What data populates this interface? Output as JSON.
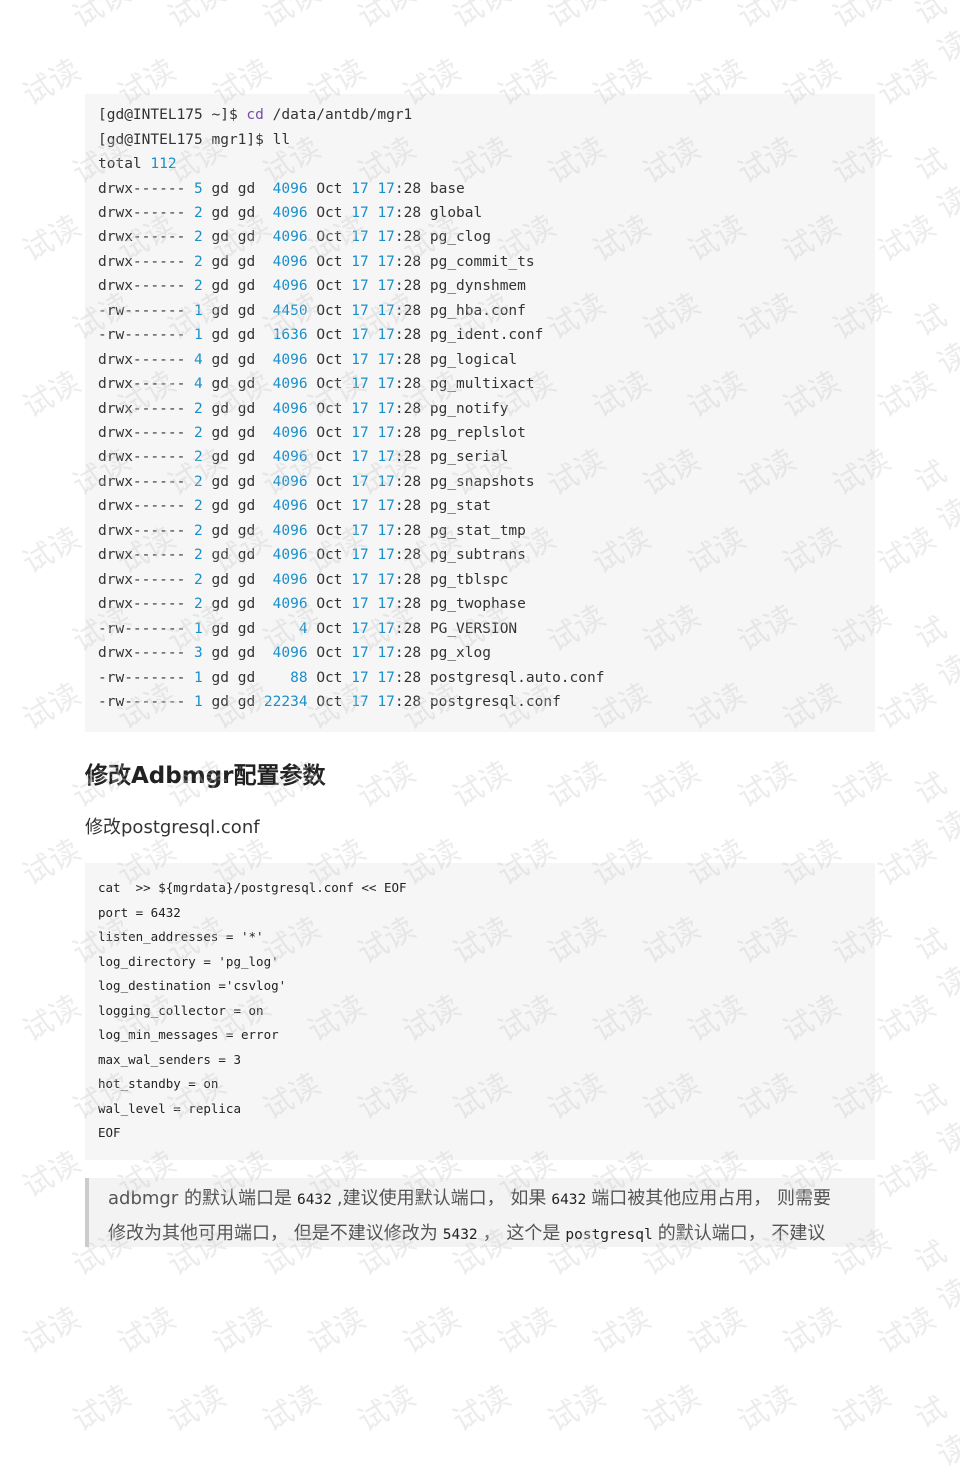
{
  "watermark": "试读",
  "terminal": {
    "prompt1": "[gd@INTEL175 ~]$ ",
    "cmd1": "cd",
    "arg1": " /data/antdb/mgr1",
    "prompt2": "[gd@INTEL175 mgr1]$ ll",
    "total_label": "total ",
    "total_value": "112",
    "rows": [
      [
        "drwx------",
        "5",
        "gd",
        "gd",
        " 4096",
        "Oct",
        "17",
        "17",
        ":28",
        "base"
      ],
      [
        "drwx------",
        "2",
        "gd",
        "gd",
        " 4096",
        "Oct",
        "17",
        "17",
        ":28",
        "global"
      ],
      [
        "drwx------",
        "2",
        "gd",
        "gd",
        " 4096",
        "Oct",
        "17",
        "17",
        ":28",
        "pg_clog"
      ],
      [
        "drwx------",
        "2",
        "gd",
        "gd",
        " 4096",
        "Oct",
        "17",
        "17",
        ":28",
        "pg_commit_ts"
      ],
      [
        "drwx------",
        "2",
        "gd",
        "gd",
        " 4096",
        "Oct",
        "17",
        "17",
        ":28",
        "pg_dynshmem"
      ],
      [
        "-rw-------",
        "1",
        "gd",
        "gd",
        " 4450",
        "Oct",
        "17",
        "17",
        ":28",
        "pg_hba.conf"
      ],
      [
        "-rw-------",
        "1",
        "gd",
        "gd",
        " 1636",
        "Oct",
        "17",
        "17",
        ":28",
        "pg_ident.conf"
      ],
      [
        "drwx------",
        "4",
        "gd",
        "gd",
        " 4096",
        "Oct",
        "17",
        "17",
        ":28",
        "pg_logical"
      ],
      [
        "drwx------",
        "4",
        "gd",
        "gd",
        " 4096",
        "Oct",
        "17",
        "17",
        ":28",
        "pg_multixact"
      ],
      [
        "drwx------",
        "2",
        "gd",
        "gd",
        " 4096",
        "Oct",
        "17",
        "17",
        ":28",
        "pg_notify"
      ],
      [
        "drwx------",
        "2",
        "gd",
        "gd",
        " 4096",
        "Oct",
        "17",
        "17",
        ":28",
        "pg_replslot"
      ],
      [
        "drwx------",
        "2",
        "gd",
        "gd",
        " 4096",
        "Oct",
        "17",
        "17",
        ":28",
        "pg_serial"
      ],
      [
        "drwx------",
        "2",
        "gd",
        "gd",
        " 4096",
        "Oct",
        "17",
        "17",
        ":28",
        "pg_snapshots"
      ],
      [
        "drwx------",
        "2",
        "gd",
        "gd",
        " 4096",
        "Oct",
        "17",
        "17",
        ":28",
        "pg_stat"
      ],
      [
        "drwx------",
        "2",
        "gd",
        "gd",
        " 4096",
        "Oct",
        "17",
        "17",
        ":28",
        "pg_stat_tmp"
      ],
      [
        "drwx------",
        "2",
        "gd",
        "gd",
        " 4096",
        "Oct",
        "17",
        "17",
        ":28",
        "pg_subtrans"
      ],
      [
        "drwx------",
        "2",
        "gd",
        "gd",
        " 4096",
        "Oct",
        "17",
        "17",
        ":28",
        "pg_tblspc"
      ],
      [
        "drwx------",
        "2",
        "gd",
        "gd",
        " 4096",
        "Oct",
        "17",
        "17",
        ":28",
        "pg_twophase"
      ],
      [
        "-rw-------",
        "1",
        "gd",
        "gd",
        "    4",
        "Oct",
        "17",
        "17",
        ":28",
        "PG_VERSION"
      ],
      [
        "drwx------",
        "3",
        "gd",
        "gd",
        " 4096",
        "Oct",
        "17",
        "17",
        ":28",
        "pg_xlog"
      ],
      [
        "-rw-------",
        "1",
        "gd",
        "gd",
        "   88",
        "Oct",
        "17",
        "17",
        ":28",
        "postgresql.auto.conf"
      ],
      [
        "-rw-------",
        "1",
        "gd",
        "gd",
        "22234",
        "Oct",
        "17",
        "17",
        ":28",
        "postgresql.conf"
      ]
    ]
  },
  "section": {
    "title": "修改Adbmgr配置参数",
    "subtitle": "修改postgresql.conf"
  },
  "config_lines": [
    "cat  >> ${mgrdata}/postgresql.conf << EOF",
    "port = 6432",
    "listen_addresses = '*'",
    "log_directory = 'pg_log'",
    "log_destination ='csvlog'",
    "logging_collector = on",
    "log_min_messages = error",
    "max_wal_senders = 3",
    "hot_standby = on",
    "wal_level = replica",
    "EOF"
  ],
  "note": {
    "t1": "adbmgr 的默认端口是",
    "c1": "6432",
    "t2": ",建议使用默认端口，  如果",
    "c2": "6432",
    "t3": "端口被其他应用占用，  则需要",
    "t4": "修改为其他可用端口，  但是不建议修改为",
    "c3": "5432",
    "t5": "，  这个是",
    "c4": "postgresql",
    "t6": "的默认端口，  不建议"
  }
}
